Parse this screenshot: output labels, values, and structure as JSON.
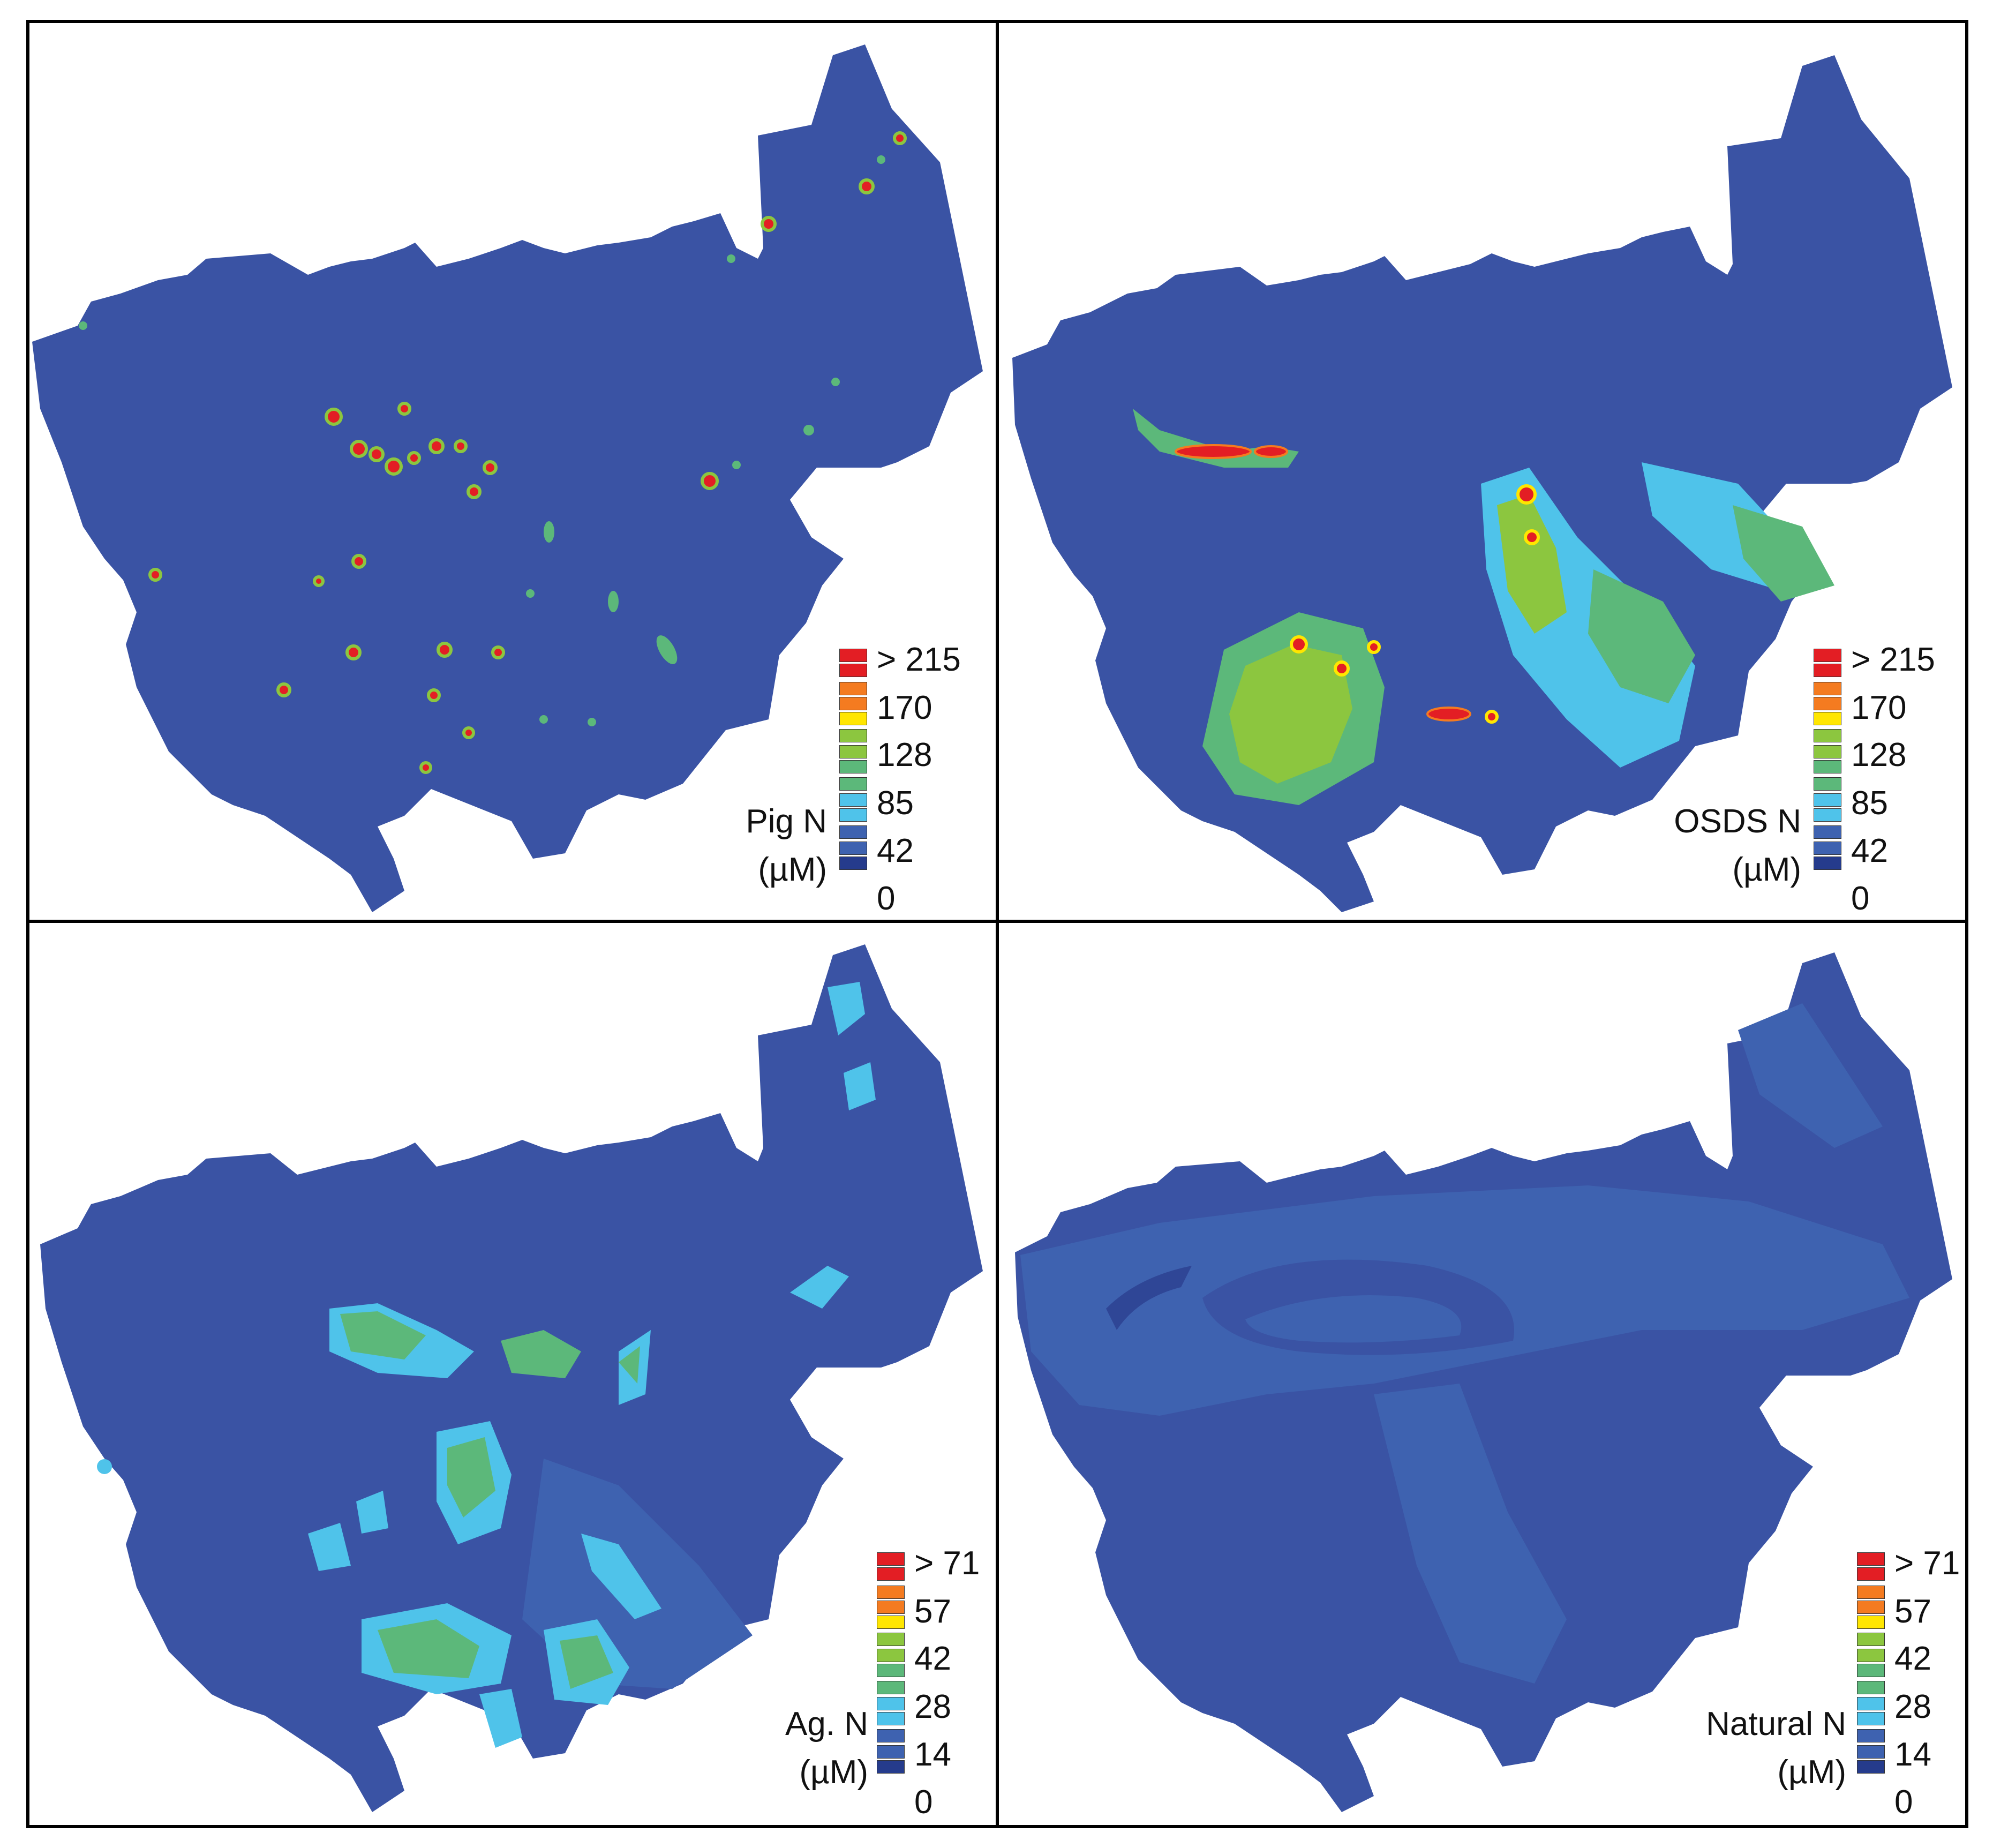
{
  "colors": {
    "background": "#ffffff",
    "border": "#000000",
    "map_base": "#3a53a4",
    "scale": [
      "#253b8c",
      "#3e62b0",
      "#4fc3ea",
      "#5cb87a",
      "#8cc63f",
      "#ffe600",
      "#f47b20",
      "#e31e24"
    ]
  },
  "panels": [
    {
      "id": "pig",
      "legend_title_line1": "Pig N",
      "legend_title_line2": "(µM)",
      "ticks": [
        "> 215",
        "170",
        "128",
        "85",
        "42",
        "0"
      ]
    },
    {
      "id": "osds",
      "legend_title_line1": "OSDS N",
      "legend_title_line2": "(µM)",
      "ticks": [
        "> 215",
        "170",
        "128",
        "85",
        "42",
        "0"
      ]
    },
    {
      "id": "ag",
      "legend_title_line1": "Ag. N",
      "legend_title_line2": "(µM)",
      "ticks": [
        "> 71",
        "57",
        "42",
        "28",
        "14",
        "0"
      ]
    },
    {
      "id": "natural",
      "legend_title_line1": "Natural N",
      "legend_title_line2": "(µM)",
      "ticks": [
        "> 71",
        "57",
        "42",
        "28",
        "14",
        "0"
      ]
    }
  ]
}
